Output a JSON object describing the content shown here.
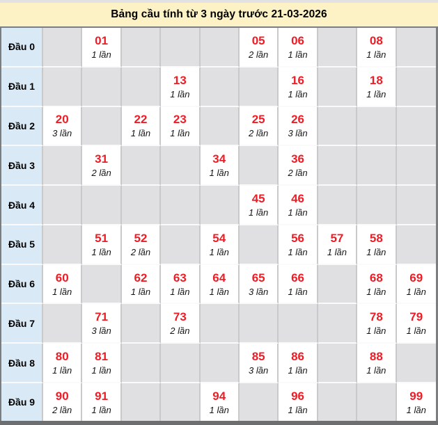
{
  "title": "Bảng cầu tính từ 3 ngày trước 21-03-2026",
  "colors": {
    "title_bg": "#fdf2c6",
    "label_bg": "#d9eaf6",
    "empty_cell_bg": "#e0e0e2",
    "filled_cell_bg": "#ffffff",
    "number_red": "#ee1c25",
    "outer_border": "#7b7d7f"
  },
  "table": {
    "rows": [
      {
        "label": "Đầu 0",
        "cells": [
          null,
          {
            "num": "01",
            "count": "1 lần"
          },
          null,
          null,
          null,
          {
            "num": "05",
            "count": "2 lần"
          },
          {
            "num": "06",
            "count": "1 lần"
          },
          null,
          {
            "num": "08",
            "count": "1 lần"
          },
          null
        ]
      },
      {
        "label": "Đầu 1",
        "cells": [
          null,
          null,
          null,
          {
            "num": "13",
            "count": "1 lần"
          },
          null,
          null,
          {
            "num": "16",
            "count": "1 lần"
          },
          null,
          {
            "num": "18",
            "count": "1 lần"
          },
          null
        ]
      },
      {
        "label": "Đầu 2",
        "cells": [
          {
            "num": "20",
            "count": "3 lần"
          },
          null,
          {
            "num": "22",
            "count": "1 lần"
          },
          {
            "num": "23",
            "count": "1 lần"
          },
          null,
          {
            "num": "25",
            "count": "2 lần"
          },
          {
            "num": "26",
            "count": "3 lần"
          },
          null,
          null,
          null
        ]
      },
      {
        "label": "Đầu 3",
        "cells": [
          null,
          {
            "num": "31",
            "count": "2 lần"
          },
          null,
          null,
          {
            "num": "34",
            "count": "1 lần"
          },
          null,
          {
            "num": "36",
            "count": "2 lần"
          },
          null,
          null,
          null
        ]
      },
      {
        "label": "Đầu 4",
        "cells": [
          null,
          null,
          null,
          null,
          null,
          {
            "num": "45",
            "count": "1 lần"
          },
          {
            "num": "46",
            "count": "1 lần"
          },
          null,
          null,
          null
        ]
      },
      {
        "label": "Đầu 5",
        "cells": [
          null,
          {
            "num": "51",
            "count": "1 lần"
          },
          {
            "num": "52",
            "count": "2 lần"
          },
          null,
          {
            "num": "54",
            "count": "1 lần"
          },
          null,
          {
            "num": "56",
            "count": "1 lần"
          },
          {
            "num": "57",
            "count": "1 lần"
          },
          {
            "num": "58",
            "count": "1 lần"
          },
          null
        ]
      },
      {
        "label": "Đầu 6",
        "cells": [
          {
            "num": "60",
            "count": "1 lần"
          },
          null,
          {
            "num": "62",
            "count": "1 lần"
          },
          {
            "num": "63",
            "count": "1 lần"
          },
          {
            "num": "64",
            "count": "1 lần"
          },
          {
            "num": "65",
            "count": "3 lần"
          },
          {
            "num": "66",
            "count": "1 lần"
          },
          null,
          {
            "num": "68",
            "count": "1 lần"
          },
          {
            "num": "69",
            "count": "1 lần"
          }
        ]
      },
      {
        "label": "Đầu 7",
        "cells": [
          null,
          {
            "num": "71",
            "count": "3 lần"
          },
          null,
          {
            "num": "73",
            "count": "2 lần"
          },
          null,
          null,
          null,
          null,
          {
            "num": "78",
            "count": "1 lần"
          },
          {
            "num": "79",
            "count": "1 lần"
          }
        ]
      },
      {
        "label": "Đầu 8",
        "cells": [
          {
            "num": "80",
            "count": "1 lần"
          },
          {
            "num": "81",
            "count": "1 lần"
          },
          null,
          null,
          null,
          {
            "num": "85",
            "count": "3 lần"
          },
          {
            "num": "86",
            "count": "1 lần"
          },
          null,
          {
            "num": "88",
            "count": "1 lần"
          },
          null
        ]
      },
      {
        "label": "Đầu 9",
        "cells": [
          {
            "num": "90",
            "count": "2 lần"
          },
          {
            "num": "91",
            "count": "1 lần"
          },
          null,
          null,
          {
            "num": "94",
            "count": "1 lần"
          },
          null,
          {
            "num": "96",
            "count": "1 lần"
          },
          null,
          null,
          {
            "num": "99",
            "count": "1 lần"
          }
        ]
      }
    ]
  }
}
